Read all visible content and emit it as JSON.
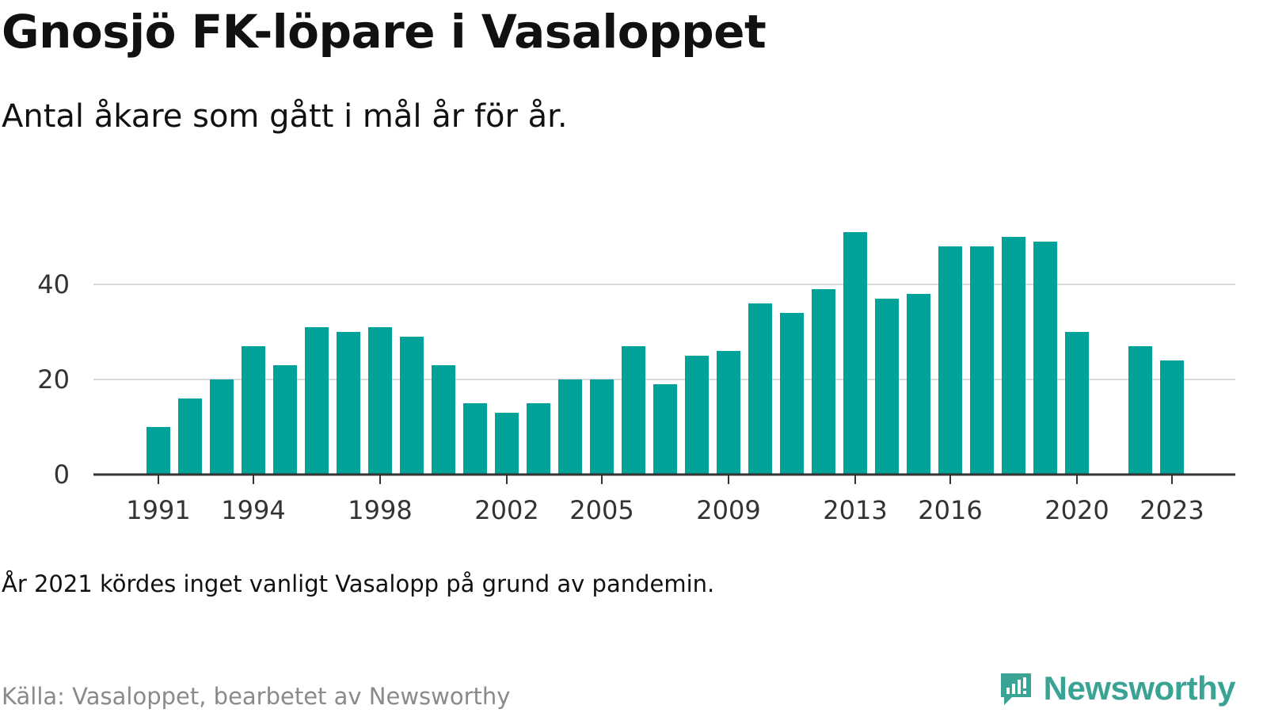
{
  "header": {
    "title": "Gnosjö FK-löpare i Vasaloppet",
    "subtitle": "Antal åkare som gått i mål år för år."
  },
  "footer": {
    "note": "År 2021 kördes inget vanligt Vasalopp på grund av pandemin.",
    "source": "Källa: Vasaloppet, bearbetet av Newsworthy",
    "brand_name": "Newsworthy",
    "brand_icon": "newsworthy-bar-chart-icon"
  },
  "colors": {
    "bar": "#00a39a",
    "grid": "#d9d9d9",
    "axis": "#333333",
    "brand": "#3aa394"
  },
  "chart_data": {
    "type": "bar",
    "categories": [
      "1991",
      "1992",
      "1993",
      "1994",
      "1995",
      "1996",
      "1997",
      "1998",
      "1999",
      "2000",
      "2001",
      "2002",
      "2003",
      "2004",
      "2005",
      "2006",
      "2007",
      "2008",
      "2009",
      "2010",
      "2011",
      "2012",
      "2013",
      "2014",
      "2015",
      "2016",
      "2017",
      "2018",
      "2019",
      "2020",
      "2021",
      "2022",
      "2023"
    ],
    "values": [
      10,
      16,
      20,
      27,
      23,
      31,
      30,
      31,
      29,
      23,
      15,
      13,
      15,
      20,
      20,
      27,
      19,
      25,
      26,
      36,
      34,
      39,
      51,
      37,
      38,
      48,
      48,
      50,
      49,
      30,
      null,
      27,
      24
    ],
    "x_tick_labels": [
      "1991",
      "1994",
      "1998",
      "2002",
      "2005",
      "2009",
      "2013",
      "2016",
      "2020",
      "2023"
    ],
    "y_ticks": [
      0,
      20,
      40
    ],
    "ylim": [
      0,
      55
    ],
    "grid": true,
    "legend": "none"
  }
}
